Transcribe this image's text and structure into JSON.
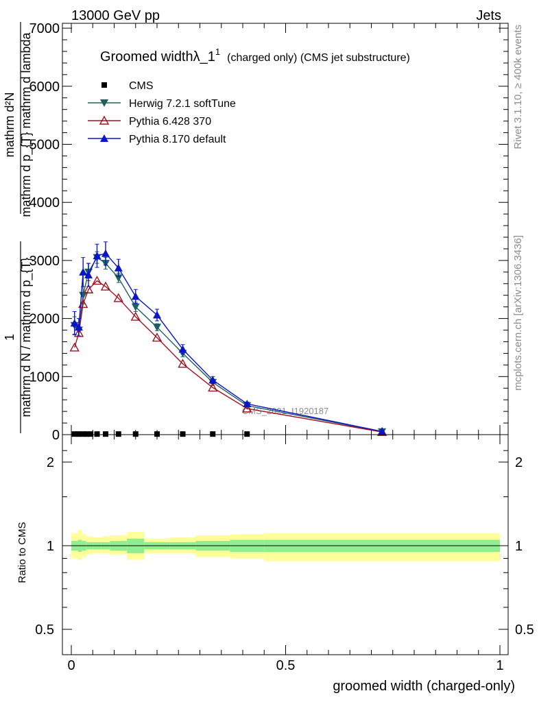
{
  "header": {
    "left": "13000 GeV pp",
    "right": "Jets"
  },
  "side": {
    "top": "Rivet 3.1.10, ≥ 400k events",
    "bottom": "mcplots.cern.ch [arXiv:1306.3436]"
  },
  "watermark": "CMS_2021_I1920187",
  "chart_data": [
    {
      "type": "line",
      "title": {
        "main": "Groomed widthλ_1",
        "sup": "1",
        "tail": "(charged only) (CMS jet substructure)"
      },
      "ylabel": {
        "numerator": "mathrm d²N",
        "denominator": "mathrm d p_{T} mathrm d lambda",
        "prefix_num": "1",
        "prefix_den": "mathrm d N / mathrm d p_{T}",
        "raw": "mathrm dN / mathrm d p_T mathrm d lambda"
      },
      "xlim": [
        0,
        1
      ],
      "ylim": [
        0,
        7000
      ],
      "y_ticks": [
        1000,
        2000,
        3000,
        4000,
        5000,
        6000,
        7000
      ],
      "legend_position": "top-left",
      "series": [
        {
          "name": "CMS",
          "color": "#000000",
          "marker": "square",
          "x": [
            0.0075,
            0.0175,
            0.0275,
            0.035,
            0.045,
            0.06,
            0.08,
            0.11,
            0.15,
            0.2,
            0.26,
            0.33,
            0.41
          ],
          "y": [
            10,
            10,
            10,
            10,
            10,
            10,
            10,
            10,
            10,
            10,
            10,
            10,
            10
          ]
        },
        {
          "name": "Herwig 7.2.1 softTune",
          "color": "#1f5f5f",
          "marker": "triangle-down",
          "x": [
            0.0075,
            0.0175,
            0.0275,
            0.04,
            0.06,
            0.08,
            0.11,
            0.15,
            0.2,
            0.26,
            0.33,
            0.41,
            0.725
          ],
          "y": [
            1880,
            1800,
            2400,
            2800,
            3050,
            2950,
            2700,
            2200,
            1850,
            1400,
            900,
            500,
            50
          ],
          "err": [
            150,
            100,
            150,
            150,
            100,
            100,
            80,
            80,
            60,
            60,
            50,
            30,
            10
          ]
        },
        {
          "name": "Pythia 6.428 370",
          "color": "#a01020",
          "marker": "triangle-open",
          "x": [
            0.0075,
            0.0175,
            0.0275,
            0.04,
            0.06,
            0.08,
            0.11,
            0.15,
            0.2,
            0.26,
            0.33,
            0.41,
            0.725
          ],
          "y": [
            1500,
            1750,
            2250,
            2500,
            2650,
            2550,
            2350,
            2030,
            1670,
            1220,
            810,
            450,
            45
          ]
        },
        {
          "name": "Pythia 8.170 default",
          "color": "#0a14c8",
          "marker": "triangle-up",
          "x": [
            0.0075,
            0.0175,
            0.0275,
            0.04,
            0.06,
            0.08,
            0.11,
            0.15,
            0.2,
            0.26,
            0.33,
            0.41,
            0.725
          ],
          "y": [
            1920,
            1850,
            2800,
            2750,
            3080,
            3120,
            2870,
            2380,
            2060,
            1470,
            940,
            530,
            55
          ],
          "err": [
            200,
            150,
            250,
            200,
            200,
            200,
            150,
            120,
            100,
            80,
            60,
            30,
            10
          ]
        }
      ]
    },
    {
      "type": "line",
      "ylabel": "Ratio to CMS",
      "xlabel": "groomed width (charged-only)",
      "xlim": [
        0,
        1
      ],
      "ylim": [
        0.4,
        2.4
      ],
      "log_y": true,
      "y_ticks": [
        0.5,
        1,
        2
      ],
      "x_ticks": [
        0,
        0.5,
        1
      ],
      "reference_line": 1,
      "bands": [
        {
          "x0": 0.0,
          "x1": 0.015,
          "inner": [
            0.96,
            1.04
          ],
          "outer": [
            0.9,
            1.11
          ]
        },
        {
          "x0": 0.015,
          "x1": 0.025,
          "inner": [
            0.95,
            1.05
          ],
          "outer": [
            0.89,
            1.14
          ]
        },
        {
          "x0": 0.025,
          "x1": 0.035,
          "inner": [
            0.96,
            1.04
          ],
          "outer": [
            0.91,
            1.1
          ]
        },
        {
          "x0": 0.035,
          "x1": 0.05,
          "inner": [
            0.97,
            1.03
          ],
          "outer": [
            0.93,
            1.08
          ]
        },
        {
          "x0": 0.05,
          "x1": 0.07,
          "inner": [
            0.97,
            1.03
          ],
          "outer": [
            0.94,
            1.07
          ]
        },
        {
          "x0": 0.07,
          "x1": 0.09,
          "inner": [
            0.97,
            1.03
          ],
          "outer": [
            0.94,
            1.08
          ]
        },
        {
          "x0": 0.09,
          "x1": 0.13,
          "inner": [
            0.96,
            1.04
          ],
          "outer": [
            0.93,
            1.09
          ]
        },
        {
          "x0": 0.13,
          "x1": 0.17,
          "inner": [
            0.94,
            1.06
          ],
          "outer": [
            0.89,
            1.12
          ]
        },
        {
          "x0": 0.17,
          "x1": 0.23,
          "inner": [
            0.97,
            1.03
          ],
          "outer": [
            0.94,
            1.06
          ]
        },
        {
          "x0": 0.23,
          "x1": 0.29,
          "inner": [
            0.97,
            1.03
          ],
          "outer": [
            0.94,
            1.07
          ]
        },
        {
          "x0": 0.29,
          "x1": 0.37,
          "inner": [
            0.96,
            1.04
          ],
          "outer": [
            0.91,
            1.09
          ]
        },
        {
          "x0": 0.37,
          "x1": 0.45,
          "inner": [
            0.95,
            1.05
          ],
          "outer": [
            0.9,
            1.1
          ]
        },
        {
          "x0": 0.45,
          "x1": 1.0,
          "inner": [
            0.95,
            1.05
          ],
          "outer": [
            0.88,
            1.11
          ]
        }
      ]
    }
  ],
  "colors": {
    "band_inner": "#90ee90",
    "band_outer": "#ffff99",
    "axis": "#000000"
  }
}
